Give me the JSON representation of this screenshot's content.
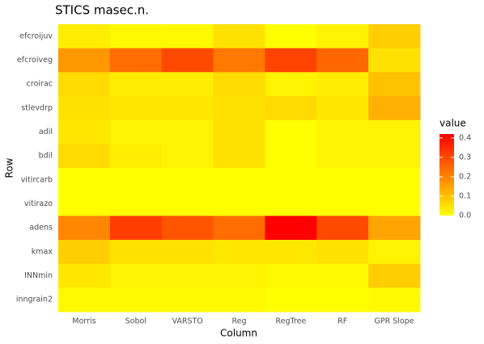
{
  "chart_data": {
    "type": "heatmap",
    "title": "STICS masec.n.",
    "x_label": "Column",
    "y_label": "Row",
    "legend_title": "value",
    "columns": [
      "Morris",
      "Sobol",
      "VARSTO",
      "Reg",
      "RegTree",
      "RF",
      "GPR Slope"
    ],
    "rows": [
      "efcroijuv",
      "efcroiveg",
      "croirac",
      "stlevdrp",
      "adil",
      "bdil",
      "vitircarb",
      "vitirazo",
      "adens",
      "kmax",
      "INNmin",
      "inngrain2"
    ],
    "values": [
      [
        0.03,
        0.01,
        0.01,
        0.05,
        0.0,
        0.02,
        0.08
      ],
      [
        0.17,
        0.24,
        0.3,
        0.22,
        0.31,
        0.25,
        0.05
      ],
      [
        0.06,
        0.03,
        0.03,
        0.06,
        0.02,
        0.03,
        0.1
      ],
      [
        0.05,
        0.04,
        0.04,
        0.05,
        0.06,
        0.04,
        0.13
      ],
      [
        0.04,
        0.02,
        0.02,
        0.05,
        0.0,
        0.02,
        0.02
      ],
      [
        0.06,
        0.03,
        0.02,
        0.05,
        0.0,
        0.02,
        0.02
      ],
      [
        0.0,
        0.0,
        0.0,
        0.0,
        0.0,
        0.0,
        0.0
      ],
      [
        0.0,
        0.0,
        0.0,
        0.0,
        0.0,
        0.0,
        0.0
      ],
      [
        0.2,
        0.32,
        0.28,
        0.24,
        0.42,
        0.3,
        0.15
      ],
      [
        0.08,
        0.05,
        0.05,
        0.04,
        0.04,
        0.05,
        0.02
      ],
      [
        0.04,
        0.02,
        0.02,
        0.02,
        0.01,
        0.01,
        0.08
      ],
      [
        0.01,
        0.01,
        0.01,
        0.01,
        0.0,
        0.0,
        0.01
      ]
    ],
    "clim": [
      0,
      0.42
    ],
    "cticks": [
      {
        "value": 0,
        "label": "0.0"
      },
      0.1,
      0.2,
      0.3,
      0.4
    ],
    "low_color": "#ffff00",
    "high_color": "#ff0000"
  }
}
